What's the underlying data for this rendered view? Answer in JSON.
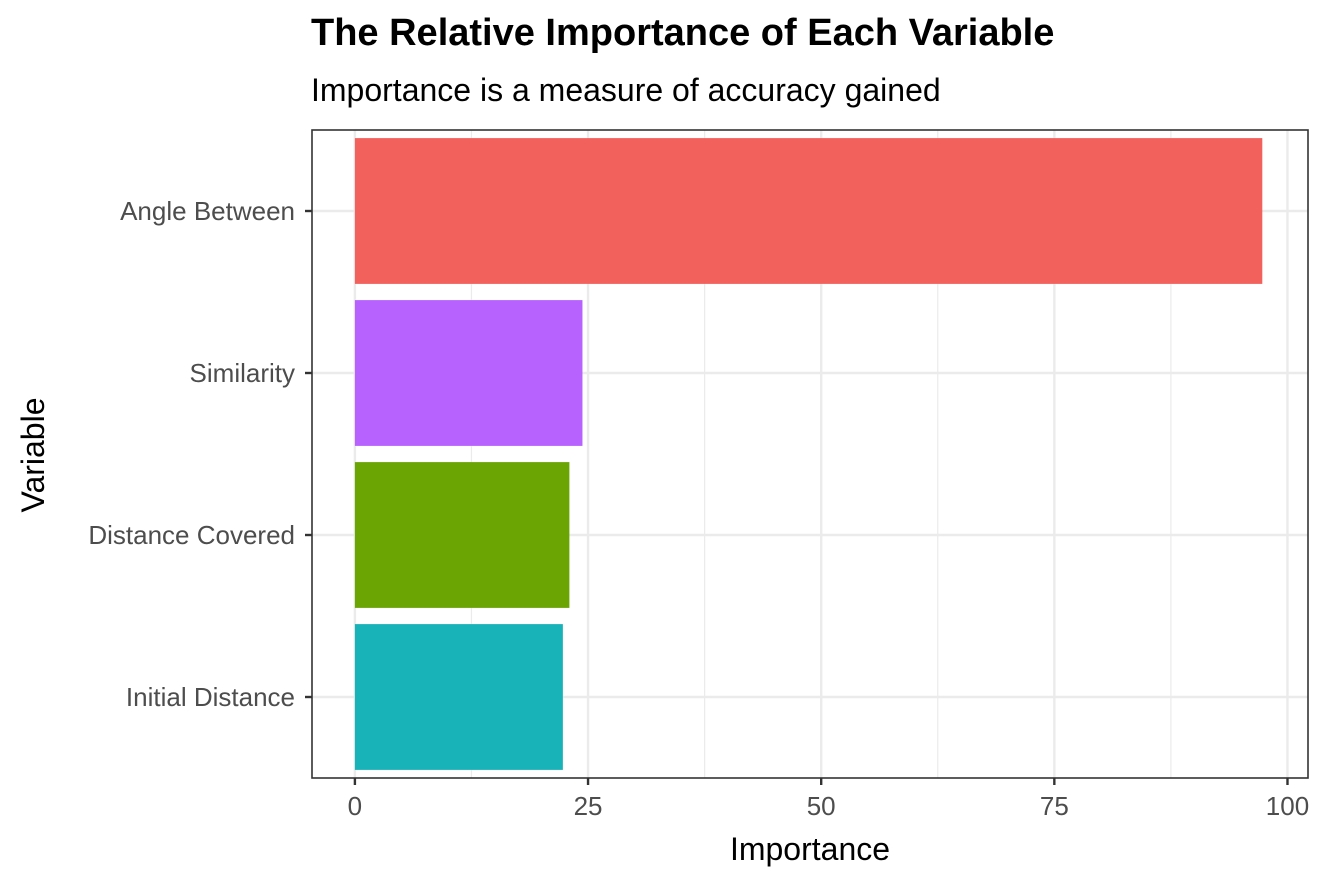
{
  "chart_data": {
    "type": "bar",
    "orientation": "horizontal",
    "title": "The Relative Importance of Each Variable",
    "subtitle": "Importance is a measure of accuracy gained",
    "xlabel": "Importance",
    "ylabel": "Variable",
    "categories": [
      "Angle Between",
      "Similarity",
      "Distance Covered",
      "Initial Distance"
    ],
    "values": [
      97.3,
      24.4,
      23.0,
      22.3
    ],
    "colors": [
      "#F3615C",
      "#B762FF",
      "#6BA503",
      "#18B3B9"
    ],
    "xlim": [
      -4.6,
      102.2
    ],
    "xticks": [
      0,
      25,
      50,
      75,
      100
    ],
    "xtick_labels": [
      "0",
      "25",
      "50",
      "75",
      "100"
    ],
    "grid": true,
    "legend": "none"
  }
}
